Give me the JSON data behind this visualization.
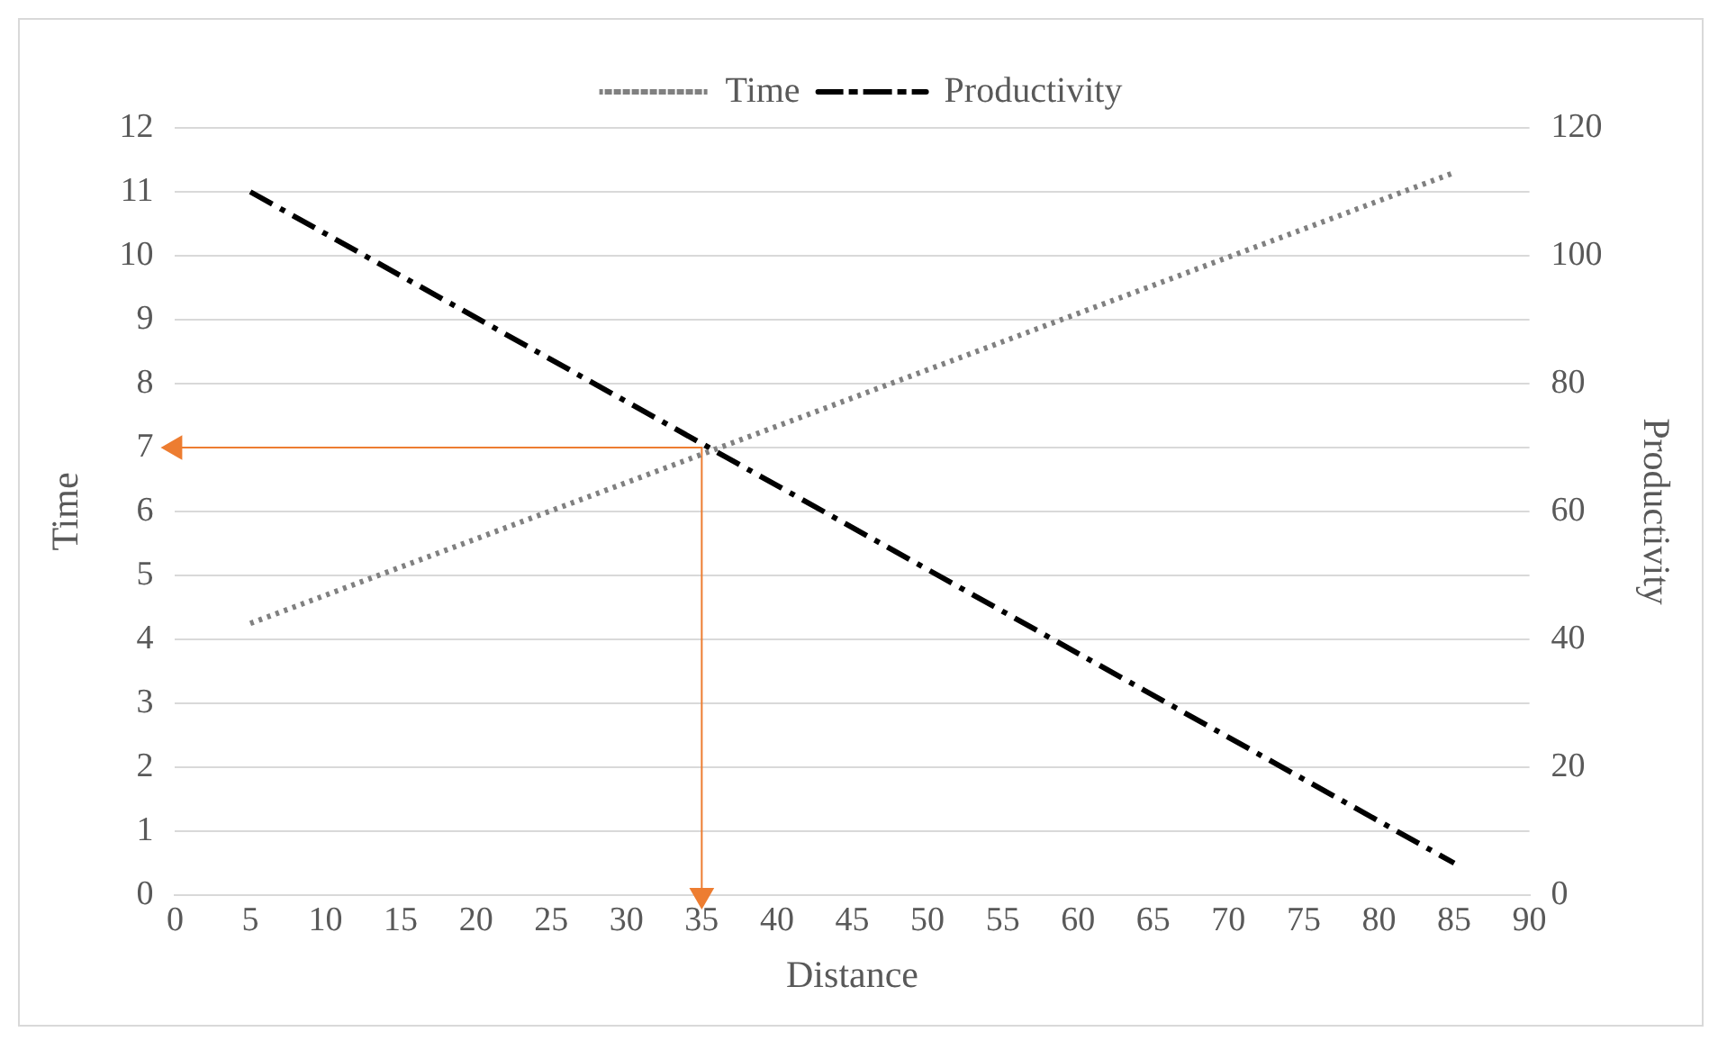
{
  "chart_data": {
    "type": "line",
    "xlabel": "Distance",
    "ylabel": "Time",
    "y2label": "Productivity",
    "xlim": [
      0,
      90
    ],
    "xticks": [
      0,
      5,
      10,
      15,
      20,
      25,
      30,
      35,
      40,
      45,
      50,
      55,
      60,
      65,
      70,
      75,
      80,
      85,
      90
    ],
    "ylim": [
      0,
      12
    ],
    "yticks": [
      0,
      1,
      2,
      3,
      4,
      5,
      6,
      7,
      8,
      9,
      10,
      11,
      12
    ],
    "y2lim": [
      0,
      120
    ],
    "y2ticks": [
      0,
      20,
      40,
      60,
      80,
      100,
      120
    ],
    "grid": "y",
    "legend": "top",
    "series": [
      {
        "name": "Time",
        "color": "#808080",
        "x": [
          5,
          85
        ],
        "values": [
          4.25,
          11.3
        ],
        "line_style": "dotted"
      },
      {
        "name": "Productivity",
        "color": "#000000",
        "x": [
          5,
          85
        ],
        "values": [
          110,
          5
        ],
        "axis": "y2",
        "line_style": "dashed"
      },
      {
        "color": "#ed7d31",
        "x": [
          35,
          0
        ],
        "values": [
          7,
          7
        ],
        "marker": "triangle"
      },
      {
        "color": "#ed7d31",
        "x": [
          35,
          35
        ],
        "values": [
          7,
          0
        ],
        "marker": "triangle"
      }
    ]
  }
}
